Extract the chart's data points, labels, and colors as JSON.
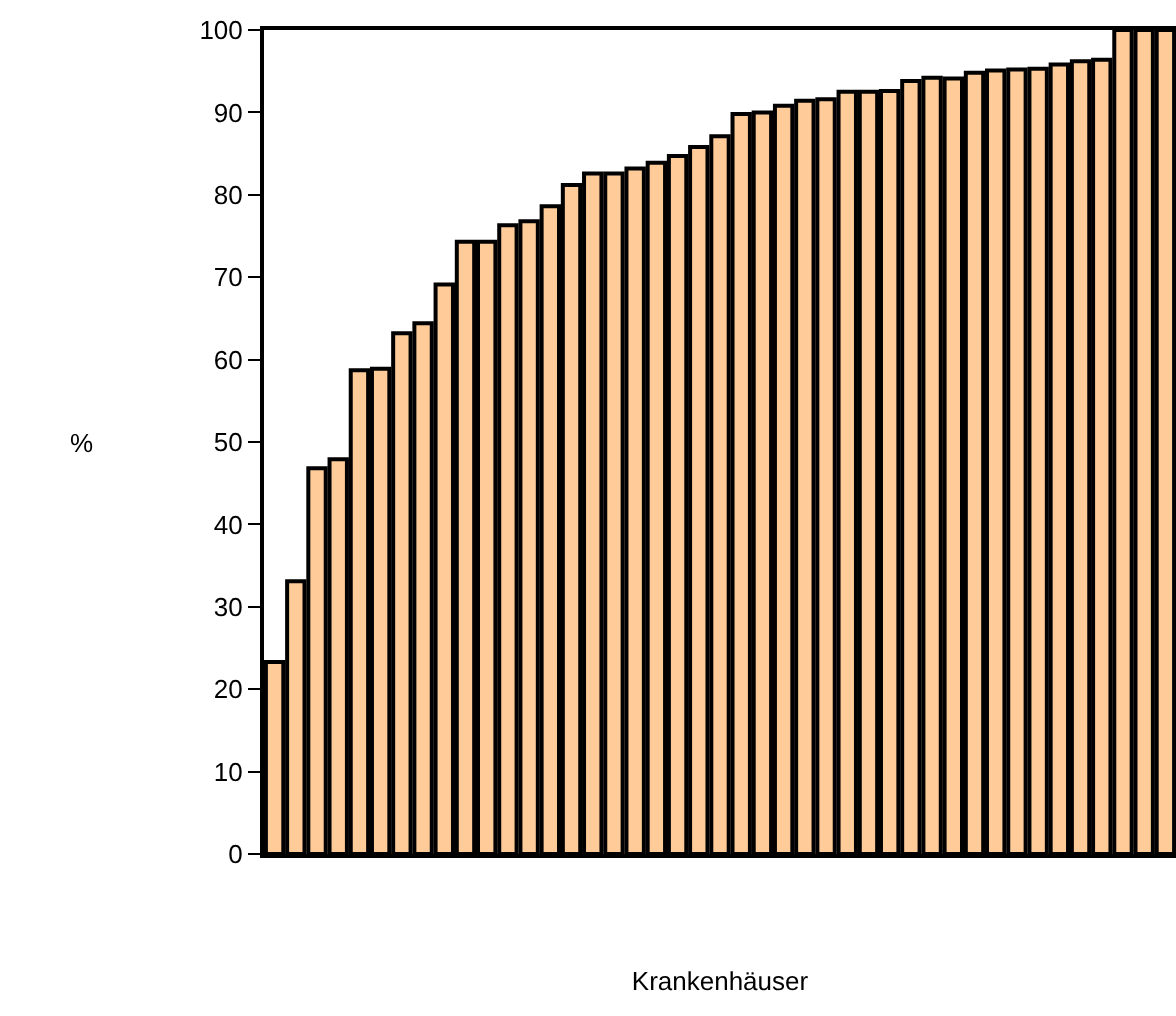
{
  "chart_data": {
    "type": "bar",
    "xlabel": "Krankenhäuser",
    "ylabel": "%",
    "categories": [
      null,
      null,
      null,
      null,
      null,
      null,
      null,
      null,
      null,
      null,
      null,
      null,
      null,
      null,
      null,
      null,
      null,
      null,
      null,
      null,
      null,
      null,
      null,
      null,
      null,
      null,
      null,
      null,
      null,
      null,
      null,
      null,
      null,
      null,
      null,
      null,
      null,
      null,
      null,
      null,
      null,
      null,
      null
    ],
    "values": [
      23.3,
      33.1,
      46.8,
      47.9,
      58.7,
      58.9,
      63.2,
      64.4,
      69.1,
      74.3,
      74.3,
      76.3,
      76.8,
      78.6,
      81.2,
      82.6,
      82.6,
      83.2,
      83.9,
      84.7,
      85.8,
      87.1,
      89.8,
      90.0,
      90.8,
      91.4,
      91.6,
      92.5,
      92.5,
      92.6,
      93.8,
      94.2,
      94.1,
      94.8,
      95.1,
      95.2,
      95.3,
      95.8,
      96.2,
      96.4,
      100,
      100,
      100
    ],
    "color": "#ffcc99",
    "ylim": [
      0,
      100
    ],
    "yticks": [
      0,
      10,
      20,
      30,
      40,
      50,
      60,
      70,
      80,
      90,
      100
    ],
    "tick_labels": "y",
    "grid": false
  }
}
